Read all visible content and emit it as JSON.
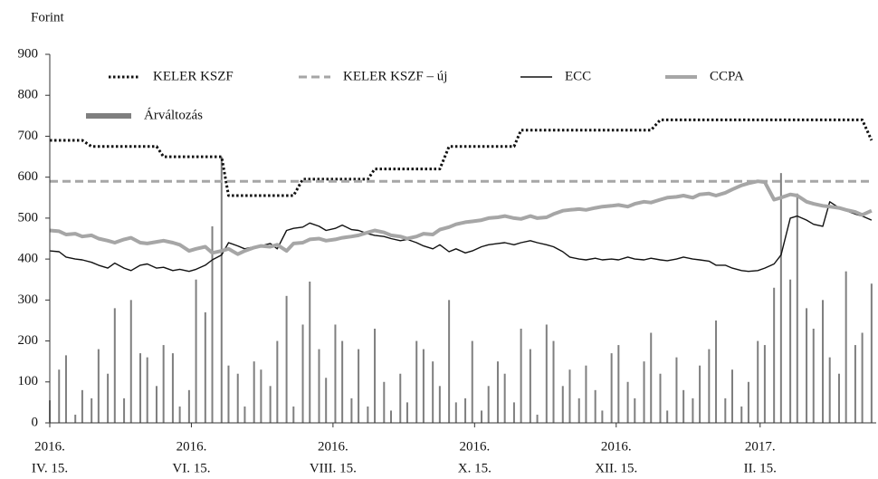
{
  "chart_data": {
    "type": "line",
    "y_label": "Forint",
    "ylim": [
      0,
      900
    ],
    "yticks": [
      0,
      100,
      200,
      300,
      400,
      500,
      600,
      700,
      800,
      900
    ],
    "grid": false,
    "xlim": [
      "2016-04-15",
      "2017-04-06"
    ],
    "xticks": [
      {
        "value": "2016-04-15",
        "label": [
          "2016.",
          "IV. 15."
        ]
      },
      {
        "value": "2016-06-15",
        "label": [
          "2016.",
          "VI. 15."
        ]
      },
      {
        "value": "2016-08-15",
        "label": [
          "2016.",
          "VIII. 15."
        ]
      },
      {
        "value": "2016-10-15",
        "label": [
          "2016.",
          "X. 15."
        ]
      },
      {
        "value": "2016-12-15",
        "label": [
          "2016.",
          "XII. 15."
        ]
      },
      {
        "value": "2017-02-15",
        "label": [
          "2017.",
          "II. 15."
        ]
      }
    ],
    "x": [
      "2016-04-15",
      "2016-04-19",
      "2016-04-22",
      "2016-04-26",
      "2016-04-29",
      "2016-05-03",
      "2016-05-06",
      "2016-05-10",
      "2016-05-13",
      "2016-05-17",
      "2016-05-20",
      "2016-05-24",
      "2016-05-27",
      "2016-05-31",
      "2016-06-03",
      "2016-06-07",
      "2016-06-10",
      "2016-06-14",
      "2016-06-17",
      "2016-06-21",
      "2016-06-24",
      "2016-06-28",
      "2016-07-01",
      "2016-07-05",
      "2016-07-08",
      "2016-07-12",
      "2016-07-15",
      "2016-07-19",
      "2016-07-22",
      "2016-07-26",
      "2016-07-29",
      "2016-08-02",
      "2016-08-05",
      "2016-08-09",
      "2016-08-12",
      "2016-08-16",
      "2016-08-19",
      "2016-08-23",
      "2016-08-26",
      "2016-08-30",
      "2016-09-02",
      "2016-09-06",
      "2016-09-09",
      "2016-09-13",
      "2016-09-16",
      "2016-09-20",
      "2016-09-23",
      "2016-09-27",
      "2016-09-30",
      "2016-10-04",
      "2016-10-07",
      "2016-10-11",
      "2016-10-14",
      "2016-10-18",
      "2016-10-21",
      "2016-10-25",
      "2016-10-28",
      "2016-11-01",
      "2016-11-04",
      "2016-11-08",
      "2016-11-11",
      "2016-11-15",
      "2016-11-18",
      "2016-11-22",
      "2016-11-25",
      "2016-11-29",
      "2016-12-02",
      "2016-12-06",
      "2016-12-09",
      "2016-12-13",
      "2016-12-16",
      "2016-12-20",
      "2016-12-23",
      "2016-12-27",
      "2016-12-30",
      "2017-01-03",
      "2017-01-06",
      "2017-01-10",
      "2017-01-13",
      "2017-01-17",
      "2017-01-20",
      "2017-01-24",
      "2017-01-27",
      "2017-01-31",
      "2017-02-03",
      "2017-02-07",
      "2017-02-10",
      "2017-02-14",
      "2017-02-17",
      "2017-02-21",
      "2017-02-24",
      "2017-02-28",
      "2017-03-03",
      "2017-03-07",
      "2017-03-10",
      "2017-03-14",
      "2017-03-17",
      "2017-03-21",
      "2017-03-24",
      "2017-03-28",
      "2017-03-31",
      "2017-04-04"
    ],
    "series": [
      {
        "name": "KELER KSZF",
        "type": "line",
        "style": "dotted",
        "color": "#111111",
        "values": [
          690,
          690,
          690,
          690,
          690,
          675,
          675,
          675,
          675,
          675,
          675,
          675,
          675,
          675,
          650,
          650,
          650,
          650,
          650,
          650,
          650,
          650,
          555,
          555,
          555,
          555,
          555,
          555,
          555,
          555,
          555,
          595,
          595,
          595,
          595,
          595,
          595,
          595,
          595,
          595,
          620,
          620,
          620,
          620,
          620,
          620,
          620,
          620,
          620,
          675,
          675,
          675,
          675,
          675,
          675,
          675,
          675,
          675,
          715,
          715,
          715,
          715,
          715,
          715,
          715,
          715,
          715,
          715,
          715,
          715,
          715,
          715,
          715,
          715,
          715,
          740,
          740,
          740,
          740,
          740,
          740,
          740,
          740,
          740,
          740,
          740,
          740,
          740,
          740,
          740,
          740,
          740,
          740,
          740,
          740,
          740,
          740,
          740,
          740,
          740,
          740,
          690
        ]
      },
      {
        "name": "KELER KSZF – új",
        "type": "line",
        "style": "dashed",
        "color": "#a6a6a6",
        "values": [
          590,
          590,
          590,
          590,
          590,
          590,
          590,
          590,
          590,
          590,
          590,
          590,
          590,
          590,
          590,
          590,
          590,
          590,
          590,
          590,
          590,
          590,
          590,
          590,
          590,
          590,
          590,
          590,
          590,
          590,
          590,
          590,
          590,
          590,
          590,
          590,
          590,
          590,
          590,
          590,
          590,
          590,
          590,
          590,
          590,
          590,
          590,
          590,
          590,
          590,
          590,
          590,
          590,
          590,
          590,
          590,
          590,
          590,
          590,
          590,
          590,
          590,
          590,
          590,
          590,
          590,
          590,
          590,
          590,
          590,
          590,
          590,
          590,
          590,
          590,
          590,
          590,
          590,
          590,
          590,
          590,
          590,
          590,
          590,
          590,
          590,
          590,
          590,
          590,
          590,
          590,
          590,
          590,
          590,
          590,
          590,
          590,
          590,
          590,
          590,
          590,
          590
        ]
      },
      {
        "name": "ECC",
        "type": "line",
        "style": "solid",
        "color": "#111111",
        "values": [
          420,
          418,
          405,
          400,
          398,
          392,
          385,
          378,
          390,
          378,
          372,
          385,
          388,
          378,
          380,
          372,
          375,
          370,
          375,
          385,
          398,
          410,
          440,
          432,
          425,
          430,
          432,
          438,
          425,
          470,
          475,
          478,
          488,
          480,
          470,
          475,
          483,
          472,
          470,
          462,
          458,
          455,
          450,
          445,
          448,
          440,
          432,
          425,
          435,
          418,
          425,
          415,
          420,
          430,
          435,
          438,
          440,
          435,
          440,
          445,
          440,
          435,
          430,
          418,
          405,
          400,
          398,
          402,
          398,
          400,
          398,
          405,
          400,
          398,
          402,
          398,
          396,
          400,
          405,
          400,
          398,
          395,
          385,
          385,
          378,
          372,
          370,
          372,
          378,
          388,
          410,
          500,
          505,
          495,
          485,
          480,
          540,
          525,
          518,
          510,
          505,
          495
        ]
      },
      {
        "name": "CCPA",
        "type": "line",
        "style": "thick",
        "color": "#a6a6a6",
        "values": [
          470,
          468,
          460,
          462,
          455,
          458,
          450,
          445,
          440,
          448,
          452,
          440,
          438,
          442,
          445,
          440,
          435,
          420,
          425,
          430,
          415,
          420,
          425,
          412,
          420,
          428,
          432,
          430,
          435,
          420,
          438,
          440,
          448,
          450,
          445,
          448,
          452,
          455,
          458,
          465,
          470,
          465,
          458,
          455,
          450,
          455,
          462,
          460,
          472,
          478,
          485,
          490,
          492,
          495,
          500,
          502,
          505,
          500,
          498,
          505,
          500,
          502,
          510,
          518,
          520,
          522,
          520,
          525,
          528,
          530,
          532,
          528,
          535,
          540,
          538,
          545,
          550,
          552,
          555,
          550,
          558,
          560,
          555,
          562,
          570,
          580,
          585,
          590,
          588,
          545,
          550,
          558,
          555,
          540,
          535,
          530,
          528,
          525,
          520,
          515,
          508,
          518
        ]
      },
      {
        "name": "Árváltozás",
        "type": "bar",
        "color": "#7f7f7f",
        "values": [
          55,
          130,
          165,
          20,
          80,
          60,
          180,
          120,
          280,
          60,
          300,
          170,
          160,
          90,
          190,
          170,
          40,
          80,
          350,
          270,
          480,
          650,
          140,
          120,
          40,
          150,
          130,
          90,
          200,
          310,
          40,
          240,
          345,
          180,
          110,
          240,
          200,
          60,
          180,
          40,
          230,
          100,
          30,
          120,
          50,
          200,
          180,
          150,
          90,
          300,
          50,
          60,
          200,
          30,
          90,
          150,
          120,
          50,
          230,
          180,
          20,
          240,
          200,
          90,
          130,
          60,
          140,
          80,
          30,
          170,
          190,
          100,
          60,
          150,
          220,
          120,
          30,
          160,
          80,
          60,
          140,
          180,
          250,
          60,
          130,
          40,
          100,
          200,
          190,
          330,
          610,
          350,
          560,
          280,
          230,
          300,
          160,
          120,
          370,
          190,
          220,
          340
        ]
      }
    ]
  }
}
